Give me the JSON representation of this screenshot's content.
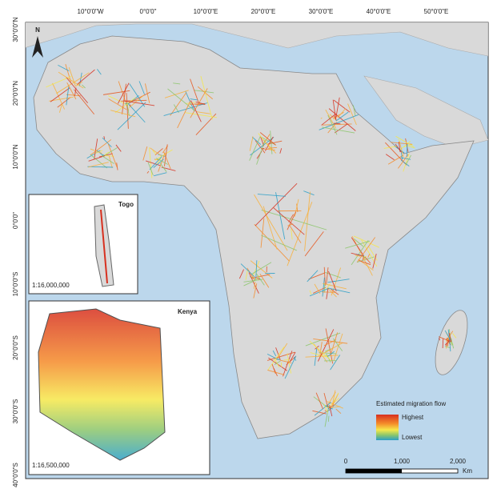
{
  "map": {
    "top_labels": [
      "10°0'0\"W",
      "0°0'0\"",
      "10°0'0\"E",
      "20°0'0\"E",
      "30°0'0\"E",
      "40°0'0\"E",
      "50°0'0\"E"
    ],
    "left_labels": [
      "30°0'0\"N",
      "20°0'0\"N",
      "10°0'0\"N",
      "0°0'0\"",
      "10°0'0\"S",
      "20°0'0\"S",
      "30°0'0\"S",
      "40°0'0\"S"
    ],
    "north": "N",
    "insets": [
      {
        "title": "Togo",
        "scale": "1:16,000,000"
      },
      {
        "title": "Kenya",
        "scale": "1:16,500,000"
      }
    ],
    "legend": {
      "title": "Estimated migration flow",
      "high": "Highest",
      "low": "Lowest"
    },
    "scale_bar": {
      "labels": [
        "0",
        "1,000",
        "2,000"
      ],
      "unit": "Km"
    }
  }
}
